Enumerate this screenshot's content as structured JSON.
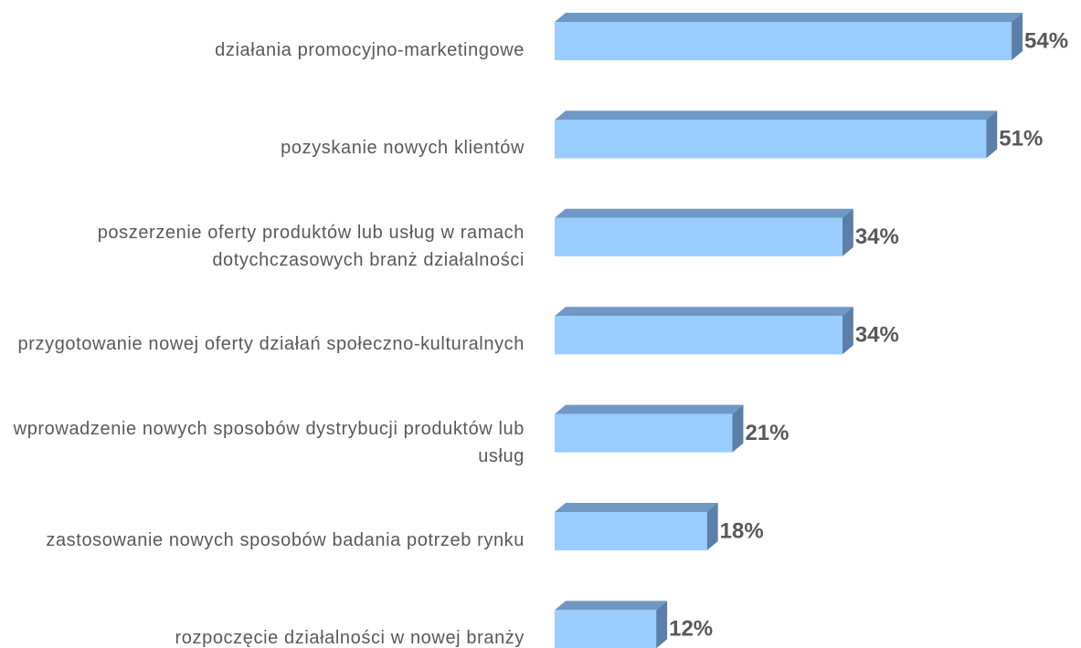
{
  "chart_data": {
    "type": "bar",
    "orientation": "horizontal",
    "categories": [
      "działania promocyjno-marketingowe",
      "pozyskanie nowych klientów",
      "poszerzenie oferty produktów lub usług w ramach dotychczasowych branż działalności",
      "przygotowanie nowej oferty działań społeczno-kulturalnych",
      "wprowadzenie nowych sposobów dystrybucji produktów lub usług",
      "zastosowanie nowych sposobów badania potrzeb rynku",
      "rozpoczęcie działalności w nowej branży"
    ],
    "values": [
      54,
      51,
      34,
      34,
      21,
      18,
      12
    ],
    "value_labels": [
      "54%",
      "51%",
      "34%",
      "34%",
      "21%",
      "18%",
      "12%"
    ],
    "color": "#99ccff"
  }
}
